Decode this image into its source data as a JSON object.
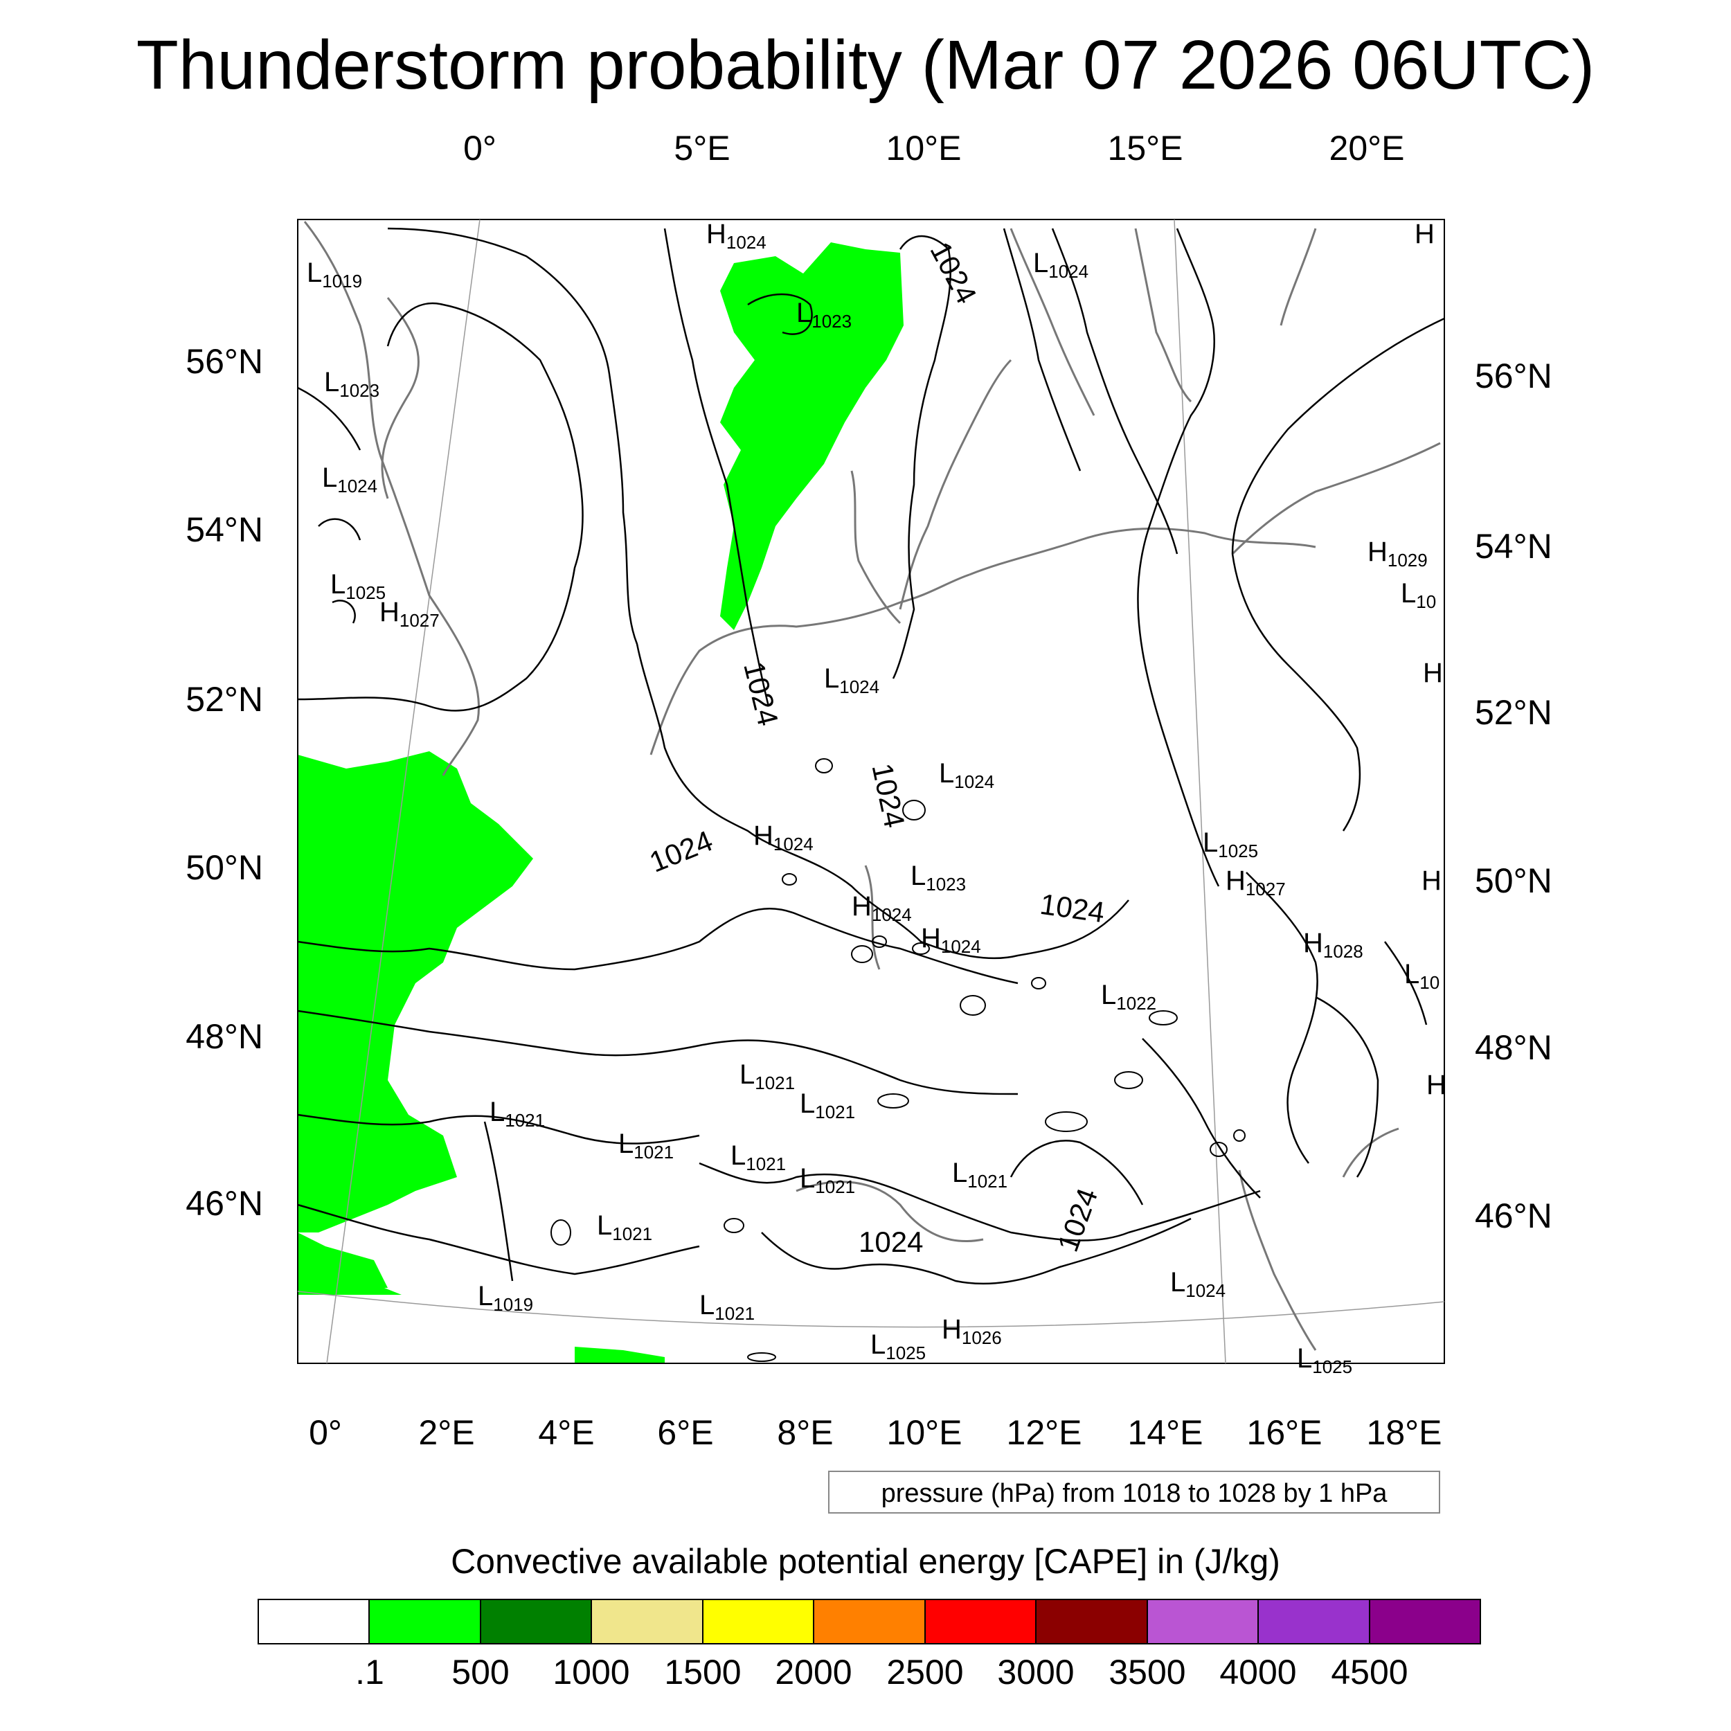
{
  "title": "Thunderstorm probability (Mar 07 2026 06UTC)",
  "top_longitude_ticks": [
    "0°",
    "5°E",
    "10°E",
    "15°E",
    "20°E"
  ],
  "bottom_longitude_ticks": [
    "0°",
    "2°E",
    "4°E",
    "6°E",
    "8°E",
    "10°E",
    "12°E",
    "14°E",
    "16°E",
    "18°E"
  ],
  "left_latitude_ticks": [
    "56°N",
    "54°N",
    "52°N",
    "50°N",
    "48°N",
    "46°N"
  ],
  "right_latitude_ticks": [
    "56°N",
    "54°N",
    "52°N",
    "50°N",
    "48°N",
    "46°N"
  ],
  "pressure_centers": [
    {
      "type": "H",
      "value": "1024"
    },
    {
      "type": "L",
      "value": "1024"
    },
    {
      "type": "H",
      "value": ""
    },
    {
      "type": "L",
      "value": "1019"
    },
    {
      "type": "L",
      "value": "1023"
    },
    {
      "type": "L",
      "value": "1023"
    },
    {
      "type": "L",
      "value": "1024"
    },
    {
      "type": "L",
      "value": "1025"
    },
    {
      "type": "H",
      "value": "1027"
    },
    {
      "type": "H",
      "value": "1029"
    },
    {
      "type": "L",
      "value": "10"
    },
    {
      "type": "H",
      "value": ""
    },
    {
      "type": "L",
      "value": "1024"
    },
    {
      "type": "L",
      "value": "1024"
    },
    {
      "type": "H",
      "value": "1024"
    },
    {
      "type": "L",
      "value": "1025"
    },
    {
      "type": "H",
      "value": "1027"
    },
    {
      "type": "H",
      "value": ""
    },
    {
      "type": "L",
      "value": "1023"
    },
    {
      "type": "H",
      "value": "1024"
    },
    {
      "type": "H",
      "value": "1024"
    },
    {
      "type": "H",
      "value": "1028"
    },
    {
      "type": "L",
      "value": "10"
    },
    {
      "type": "L",
      "value": "1022"
    },
    {
      "type": "H",
      "value": ""
    },
    {
      "type": "L",
      "value": "1021"
    },
    {
      "type": "L",
      "value": "1021"
    },
    {
      "type": "L",
      "value": "1021"
    },
    {
      "type": "L",
      "value": "1021"
    },
    {
      "type": "L",
      "value": "1021"
    },
    {
      "type": "L",
      "value": "1021"
    },
    {
      "type": "L",
      "value": "1021"
    },
    {
      "type": "L",
      "value": "1021"
    },
    {
      "type": "L",
      "value": "1019"
    },
    {
      "type": "L",
      "value": "1021"
    },
    {
      "type": "L",
      "value": "1024"
    },
    {
      "type": "L",
      "value": "1025"
    },
    {
      "type": "H",
      "value": "1026"
    },
    {
      "type": "L",
      "value": "1025"
    }
  ],
  "contour_labels": [
    "1024",
    "1024",
    "1024",
    "1024",
    "1024",
    "1024",
    "1024"
  ],
  "contour_note": "pressure (hPa) from 1018 to 1028 by 1 hPa",
  "legend": {
    "title": "Convective available potential energy [CAPE] in (J/kg)",
    "colors": [
      "#ffffff",
      "#00ff00",
      "#008000",
      "#f0e68c",
      "#ffff00",
      "#ff8000",
      "#ff0000",
      "#8b0000",
      "#ba55d3",
      "#9932cc",
      "#8b008b"
    ],
    "ticks": [
      ".1",
      "500",
      "1000",
      "1500",
      "2000",
      "2500",
      "3000",
      "3500",
      "4000",
      "4500"
    ]
  }
}
